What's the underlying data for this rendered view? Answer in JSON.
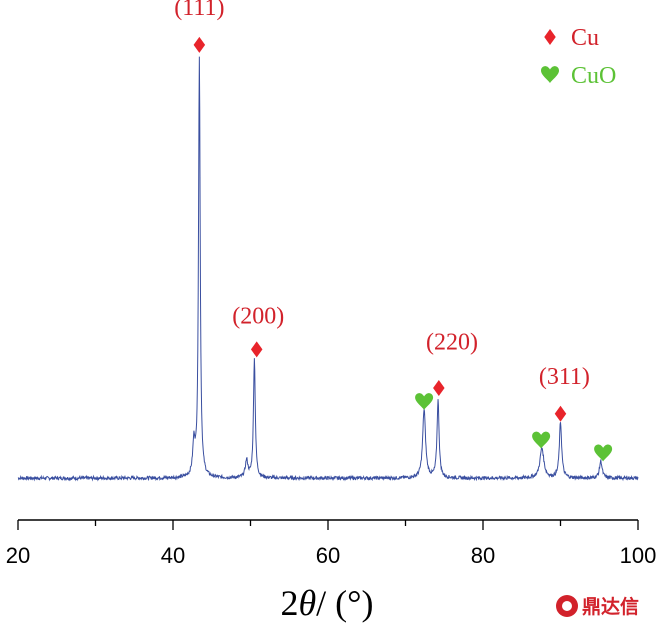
{
  "chart_data": {
    "type": "line",
    "xlabel_prefix": "2",
    "xlabel_symbol": "θ",
    "xlabel_suffix": "/ (°)",
    "ylabel": "",
    "xlim": [
      20,
      100
    ],
    "x_ticks": [
      20,
      40,
      60,
      80,
      100
    ],
    "y_visible": false,
    "grid": false,
    "series": [
      {
        "baseline": 0.03,
        "peaks": [
          {
            "x": 42.7,
            "height": 0.075,
            "width": 0.18
          },
          {
            "x": 43.4,
            "height": 0.98,
            "width": 0.13
          },
          {
            "x": 49.5,
            "height": 0.04,
            "width": 0.2
          },
          {
            "x": 50.5,
            "height": 0.28,
            "width": 0.14
          },
          {
            "x": 72.4,
            "height": 0.16,
            "width": 0.22
          },
          {
            "x": 74.2,
            "height": 0.18,
            "width": 0.16
          },
          {
            "x": 87.6,
            "height": 0.07,
            "width": 0.3
          },
          {
            "x": 90.0,
            "height": 0.13,
            "width": 0.18
          },
          {
            "x": 95.2,
            "height": 0.04,
            "width": 0.2
          }
        ]
      }
    ],
    "annotations": [
      {
        "text": "(111)",
        "x": 43.4,
        "level": 1.11
      },
      {
        "text": "(200)",
        "x": 51.0,
        "level": 0.39
      },
      {
        "text": "(220)",
        "x": 76.0,
        "level": 0.33
      },
      {
        "text": "(311)",
        "x": 90.5,
        "level": 0.25
      }
    ],
    "markers": [
      {
        "phase": "Cu",
        "x": 43.4,
        "level": 1.04
      },
      {
        "phase": "Cu",
        "x": 50.8,
        "level": 0.33
      },
      {
        "phase": "Cu",
        "x": 74.3,
        "level": 0.24
      },
      {
        "phase": "Cu",
        "x": 90.0,
        "level": 0.18
      },
      {
        "phase": "CuO",
        "x": 72.4,
        "level": 0.21
      },
      {
        "phase": "CuO",
        "x": 87.5,
        "level": 0.12
      },
      {
        "phase": "CuO",
        "x": 95.5,
        "level": 0.09
      }
    ],
    "legend": {
      "position": "top-right",
      "entries": [
        {
          "label": "Cu",
          "symbol": "diamond"
        },
        {
          "label": "CuO",
          "symbol": "heart"
        }
      ]
    },
    "colors": {
      "line": "#3a4fa0",
      "annotation": "#d2222b",
      "cu": "#e8242b",
      "cuo": "#5cc236",
      "axis": "#000000"
    }
  },
  "watermark": {
    "text": "鼎达信"
  }
}
